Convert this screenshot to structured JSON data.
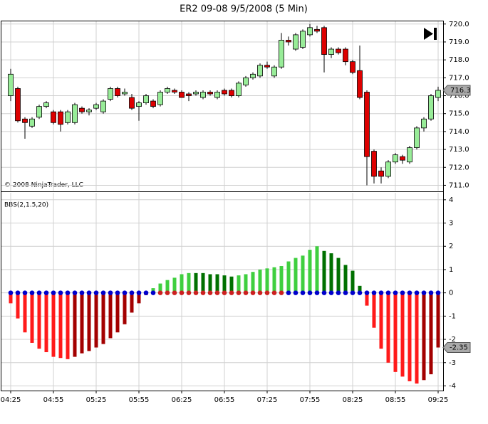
{
  "chart_data": [
    {
      "type": "candlestick",
      "title": "ER2 09-08  9/5/2008 (5 Min)",
      "copyright": "© 2008 NinjaTrader, LLC",
      "open": [
        716.0,
        716.4,
        714.7,
        714.3,
        714.8,
        715.4,
        715.1,
        715.1,
        714.5,
        714.5,
        715.3,
        715.1,
        715.3,
        715.1,
        715.8,
        716.4,
        716.1,
        715.9,
        715.4,
        715.6,
        715.7,
        715.5,
        716.2,
        716.3,
        716.2,
        716.1,
        716.1,
        715.9,
        716.2,
        715.9,
        716.3,
        716.3,
        716.0,
        716.6,
        717.0,
        717.1,
        717.7,
        717.1,
        717.6,
        719.1,
        718.6,
        718.7,
        719.4,
        719.7,
        719.8,
        718.3,
        718.6,
        718.6,
        717.9,
        717.4,
        716.2,
        712.9,
        711.8,
        711.5,
        712.3,
        712.6,
        712.3,
        713.1,
        714.2,
        714.7,
        715.9
      ],
      "high": [
        717.5,
        716.5,
        714.8,
        714.8,
        715.5,
        715.7,
        715.2,
        715.2,
        715.2,
        715.6,
        715.4,
        715.3,
        715.6,
        715.8,
        716.5,
        716.5,
        716.4,
        716.1,
        715.7,
        716.1,
        715.8,
        716.3,
        716.5,
        716.4,
        716.3,
        716.2,
        716.3,
        716.3,
        716.3,
        716.3,
        716.4,
        716.4,
        716.8,
        717.1,
        717.3,
        717.8,
        717.9,
        717.7,
        719.5,
        719.3,
        719.5,
        719.7,
        720.0,
        719.9,
        719.9,
        718.7,
        718.7,
        718.7,
        718.0,
        718.8,
        716.3,
        713.0,
        712.0,
        712.4,
        712.8,
        712.7,
        713.2,
        714.3,
        714.8,
        716.1,
        716.5
      ],
      "low": [
        715.7,
        714.5,
        713.6,
        714.2,
        714.7,
        715.3,
        714.4,
        714.0,
        714.4,
        714.4,
        715.0,
        714.9,
        715.2,
        715.0,
        715.7,
        715.9,
        716.0,
        715.2,
        714.6,
        715.5,
        715.3,
        715.4,
        716.1,
        716.1,
        715.9,
        715.7,
        716.0,
        715.8,
        716.0,
        715.8,
        716.0,
        715.9,
        715.9,
        716.5,
        716.9,
        717.0,
        717.5,
        717.0,
        717.5,
        718.8,
        718.5,
        718.6,
        719.3,
        719.5,
        717.3,
        718.1,
        718.3,
        717.7,
        717.2,
        715.8,
        711.0,
        711.1,
        711.1,
        711.4,
        712.2,
        712.2,
        712.2,
        713.0,
        714.0,
        714.6,
        715.7
      ],
      "close": [
        717.2,
        714.6,
        714.5,
        714.7,
        715.4,
        715.6,
        714.5,
        714.4,
        715.1,
        715.5,
        715.1,
        715.2,
        715.5,
        715.7,
        716.4,
        716.0,
        716.2,
        715.3,
        715.6,
        716.0,
        715.4,
        716.2,
        716.4,
        716.2,
        715.9,
        716.0,
        716.2,
        716.2,
        716.1,
        716.2,
        716.1,
        716.0,
        716.7,
        717.0,
        717.2,
        717.7,
        717.6,
        717.6,
        719.1,
        719.0,
        719.4,
        719.6,
        719.8,
        719.6,
        718.3,
        718.6,
        718.4,
        717.9,
        717.3,
        715.9,
        712.6,
        711.5,
        711.5,
        712.3,
        712.7,
        712.4,
        713.1,
        714.2,
        714.7,
        716.0,
        716.3
      ],
      "up_color": "#98ec98",
      "down_color": "#dd0000",
      "ylim": [
        710.7,
        720.15
      ],
      "yticks": [
        {
          "value": 711,
          "label": "711.0"
        },
        {
          "value": 712,
          "label": "712.0"
        },
        {
          "value": 713,
          "label": "713.0"
        },
        {
          "value": 714,
          "label": "714.0"
        },
        {
          "value": 715,
          "label": "715.0"
        },
        {
          "value": 716,
          "label": "716.0"
        },
        {
          "value": 717,
          "label": "717.0"
        },
        {
          "value": 718,
          "label": "718.0"
        },
        {
          "value": 719,
          "label": "719.0"
        },
        {
          "value": 720,
          "label": "720.0"
        }
      ],
      "grid": true
    },
    {
      "type": "bar",
      "title": "BBS(2,1.5,20)",
      "categories": [
        "04:25",
        null,
        null,
        null,
        null,
        null,
        "04:55",
        null,
        null,
        null,
        null,
        null,
        "05:25",
        null,
        null,
        null,
        null,
        null,
        "05:55",
        null,
        null,
        null,
        null,
        null,
        "06:25",
        null,
        null,
        null,
        null,
        null,
        "06:55",
        null,
        null,
        null,
        null,
        null,
        "07:25",
        null,
        null,
        null,
        null,
        null,
        "07:55",
        null,
        null,
        null,
        null,
        null,
        "08:25",
        null,
        null,
        null,
        null,
        null,
        "08:55",
        null,
        null,
        null,
        null,
        null,
        "09:25"
      ],
      "values": [
        -0.45,
        -1.1,
        -1.7,
        -2.15,
        -2.4,
        -2.55,
        -2.75,
        -2.8,
        -2.85,
        -2.75,
        -2.6,
        -2.5,
        -2.35,
        -2.2,
        -1.95,
        -1.7,
        -1.35,
        -0.85,
        -0.45,
        -0.1,
        0.2,
        0.4,
        0.55,
        0.65,
        0.8,
        0.85,
        0.85,
        0.85,
        0.8,
        0.8,
        0.75,
        0.7,
        0.75,
        0.8,
        0.9,
        1.0,
        1.05,
        1.1,
        1.15,
        1.35,
        1.5,
        1.6,
        1.85,
        2.0,
        1.8,
        1.7,
        1.5,
        1.2,
        0.95,
        0.3,
        -0.55,
        -1.5,
        -2.4,
        -3.0,
        -3.4,
        -3.6,
        -3.8,
        -3.9,
        -3.75,
        -3.5,
        -2.35
      ],
      "colors": {
        "neg_falling": "#ff1a1a",
        "neg_rising": "#a30000",
        "pos_rising": "#3fcf3f",
        "pos_falling": "#007000"
      },
      "dots": [
        0,
        0,
        0,
        0,
        0,
        0,
        0,
        0,
        0,
        0,
        0,
        0,
        0,
        0,
        0,
        0,
        0,
        0,
        0,
        0,
        0,
        0,
        0,
        0,
        0,
        0,
        0,
        0,
        0,
        0,
        0,
        0,
        0,
        0,
        0,
        0,
        0,
        0,
        0,
        0,
        0,
        0,
        0,
        0,
        0,
        0,
        0,
        0,
        0,
        0,
        0,
        0,
        0,
        0,
        0,
        0,
        0,
        0,
        0,
        0,
        0
      ],
      "dot_colors": [
        "#0000cc",
        "#0000cc",
        "#0000cc",
        "#0000cc",
        "#0000cc",
        "#0000cc",
        "#0000cc",
        "#0000cc",
        "#0000cc",
        "#0000cc",
        "#0000cc",
        "#0000cc",
        "#0000cc",
        "#0000cc",
        "#0000cc",
        "#0000cc",
        "#0000cc",
        "#0000cc",
        "#0000cc",
        "#0000cc",
        "#0000cc",
        "#cc2020",
        "#cc2020",
        "#cc2020",
        "#cc2020",
        "#cc2020",
        "#cc2020",
        "#cc2020",
        "#cc2020",
        "#cc2020",
        "#cc2020",
        "#cc2020",
        "#cc2020",
        "#cc2020",
        "#cc2020",
        "#cc2020",
        "#cc2020",
        "#cc2020",
        "#cc2020",
        "#0000cc",
        "#0000cc",
        "#0000cc",
        "#0000cc",
        "#0000cc",
        "#0000cc",
        "#0000cc",
        "#0000cc",
        "#0000cc",
        "#0000cc",
        "#0000cc",
        "#0000cc",
        "#0000cc",
        "#0000cc",
        "#0000cc",
        "#0000cc",
        "#0000cc",
        "#0000cc",
        "#0000cc",
        "#0000cc",
        "#0000cc",
        "#0000cc"
      ],
      "ylim": [
        -4.2,
        4.3
      ],
      "yticks": [
        -4,
        -3,
        -2,
        -1,
        0,
        1,
        2,
        3,
        4
      ],
      "grid": true
    }
  ]
}
